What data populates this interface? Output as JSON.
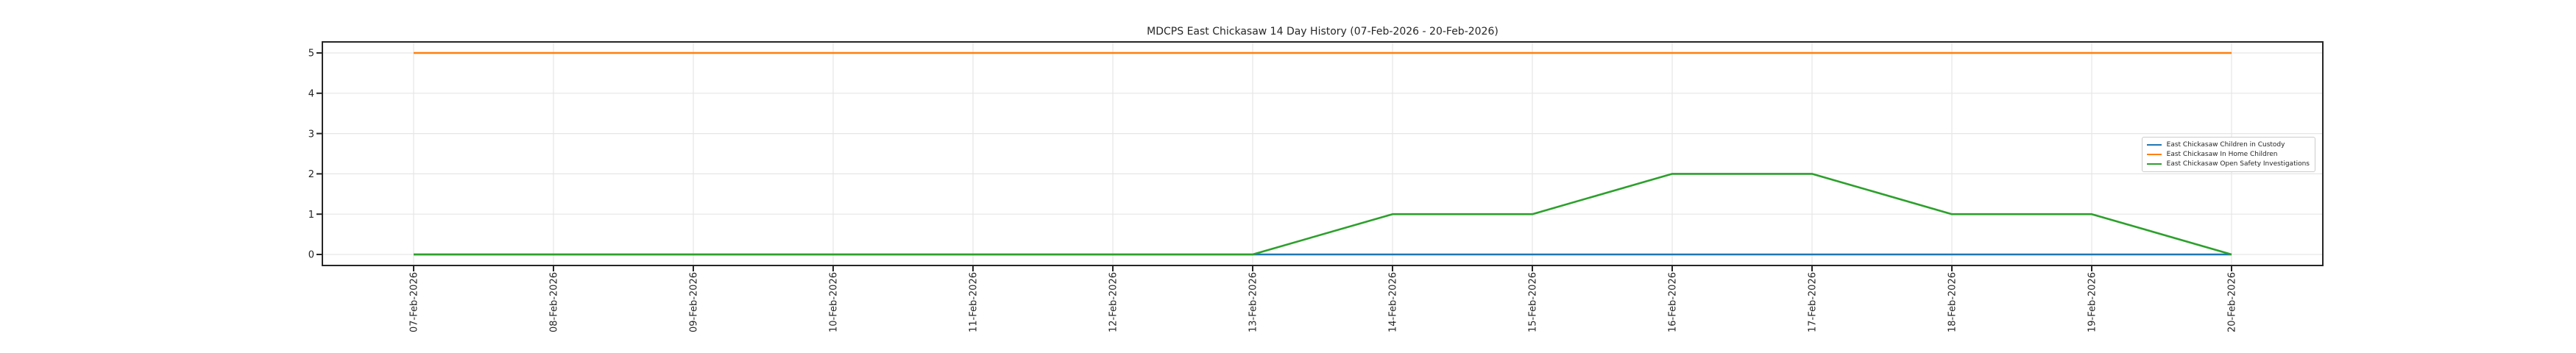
{
  "chart_data": {
    "type": "line",
    "title": "MDCPS East Chickasaw 14 Day History (07-Feb-2026 - 20-Feb-2026)",
    "x_categories": [
      "07-Feb-2026",
      "08-Feb-2026",
      "09-Feb-2026",
      "10-Feb-2026",
      "11-Feb-2026",
      "12-Feb-2026",
      "13-Feb-2026",
      "14-Feb-2026",
      "15-Feb-2026",
      "16-Feb-2026",
      "17-Feb-2026",
      "18-Feb-2026",
      "19-Feb-2026",
      "20-Feb-2026"
    ],
    "yticks": [
      0,
      1,
      2,
      3,
      4,
      5
    ],
    "ylim": [
      0,
      5
    ],
    "grid": true,
    "legend_position": "upper right",
    "series": [
      {
        "name": "East Chickasaw Children in Custody",
        "color": "#1f77b4",
        "values": [
          0,
          0,
          0,
          0,
          0,
          0,
          0,
          0,
          0,
          0,
          0,
          0,
          0,
          0
        ]
      },
      {
        "name": "East Chickasaw In Home Children",
        "color": "#ff7f0e",
        "values": [
          5,
          5,
          5,
          5,
          5,
          5,
          5,
          5,
          5,
          5,
          5,
          5,
          5,
          5
        ]
      },
      {
        "name": "East Chickasaw Open Safety Investigations",
        "color": "#2ca02c",
        "values": [
          0,
          0,
          0,
          0,
          0,
          0,
          0,
          1,
          1,
          2,
          2,
          1,
          1,
          0
        ]
      }
    ],
    "colors": {
      "axis": "#262626",
      "text": "#262626",
      "grid": "#e6e6e6",
      "legend_border": "#cccccc",
      "background": "#ffffff"
    }
  }
}
